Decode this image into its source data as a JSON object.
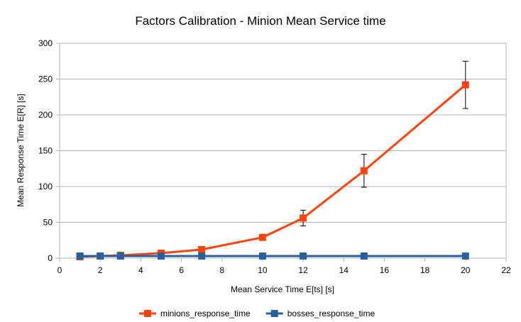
{
  "chart_data": {
    "type": "line",
    "title": "Factors Calibration - Minion Mean Service time",
    "xlabel": "Mean Service Time E[ts] [s]",
    "ylabel": "Mean Response Time E[R] [s]",
    "xlim": [
      0,
      22
    ],
    "ylim": [
      0,
      300
    ],
    "x_ticks": [
      0,
      2,
      4,
      6,
      8,
      10,
      12,
      14,
      16,
      18,
      20,
      22
    ],
    "y_ticks": [
      0,
      50,
      100,
      150,
      200,
      250,
      300
    ],
    "x_tick_labels": [
      "0",
      "2",
      "4",
      "6",
      "8",
      "10",
      "12",
      "14",
      "16",
      "18",
      "20",
      "22"
    ],
    "y_tick_labels": [
      "0",
      "50",
      "100",
      "150",
      "200",
      "250",
      "300"
    ],
    "grid": "horizontal",
    "legend_position": "bottom",
    "series": [
      {
        "name": "minions_response_time",
        "color": "#ff420e",
        "marker": "square",
        "x": [
          1,
          2,
          3,
          5,
          7,
          10,
          12,
          15,
          20
        ],
        "y": [
          2,
          3,
          4,
          7,
          12,
          29,
          56,
          122,
          242
        ],
        "error": [
          1,
          1,
          1,
          1,
          2,
          4,
          11,
          23,
          33
        ]
      },
      {
        "name": "bosses_response_time",
        "color": "#2a6099",
        "marker": "square",
        "x": [
          1,
          2,
          3,
          5,
          7,
          10,
          12,
          15,
          20
        ],
        "y": [
          3,
          3,
          3,
          3,
          3,
          3,
          3,
          3,
          3
        ],
        "error": [
          0,
          0,
          0,
          0,
          0,
          0,
          0,
          0,
          0
        ]
      }
    ]
  }
}
